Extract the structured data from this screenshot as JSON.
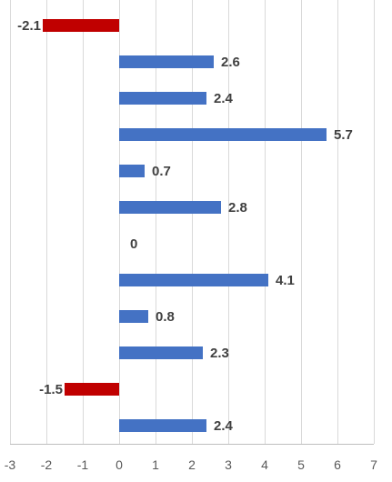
{
  "chart_data": {
    "type": "bar",
    "orientation": "horizontal",
    "title": "",
    "xlabel": "",
    "ylabel": "",
    "xlim": [
      -3,
      7
    ],
    "x_ticks": [
      "-3",
      "-2",
      "-1",
      "0",
      "1",
      "2",
      "3",
      "4",
      "5",
      "6",
      "7"
    ],
    "grid": true,
    "legend": "none",
    "values": [
      -2.1,
      2.6,
      2.4,
      5.7,
      0.7,
      2.8,
      0,
      4.1,
      0.8,
      2.3,
      -1.5,
      2.4
    ],
    "labels": [
      "-2.1",
      "2.6",
      "2.4",
      "5.7",
      "0.7",
      "2.8",
      "0",
      "4.1",
      "0.8",
      "2.3",
      "-1.5",
      "2.4"
    ],
    "colors": {
      "positive": "#4472C4",
      "negative": "#C00000"
    }
  }
}
